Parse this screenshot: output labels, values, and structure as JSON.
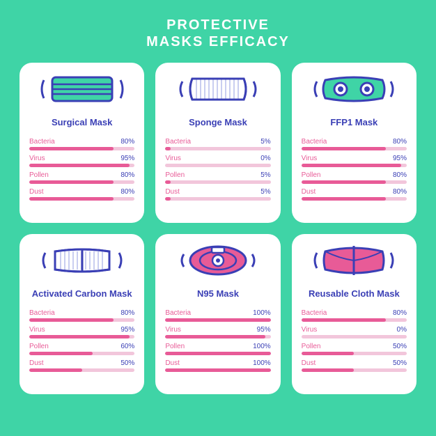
{
  "title_line1": "PROTECTIVE",
  "title_line2": "MASKS EFFICACY",
  "colors": {
    "background": "#3fd4a6",
    "card_bg": "#ffffff",
    "title_text": "#ffffff",
    "name_text": "#3a3fb5",
    "metric_label": "#e85b97",
    "metric_value": "#3a3fb5",
    "bar_track": "#f2c6db",
    "bar_fill": "#e85b97",
    "outline": "#3a3fb5",
    "mask_fill_teal": "#3fd4a6",
    "mask_fill_pink": "#e85b97",
    "mask_fill_white": "#ffffff",
    "mask_hatch": "#c9cef0"
  },
  "title_fontsize": 20,
  "name_fontsize": 13,
  "metric_fontsize": 10,
  "cards": [
    {
      "name": "Surgical Mask",
      "icon": "surgical",
      "metrics": [
        {
          "label": "Bacteria",
          "value": 80
        },
        {
          "label": "Virus",
          "value": 95
        },
        {
          "label": "Pollen",
          "value": 80
        },
        {
          "label": "Dust",
          "value": 80
        }
      ]
    },
    {
      "name": "Sponge Mask",
      "icon": "sponge",
      "metrics": [
        {
          "label": "Bacteria",
          "value": 5
        },
        {
          "label": "Virus",
          "value": 0
        },
        {
          "label": "Pollen",
          "value": 5
        },
        {
          "label": "Dust",
          "value": 5
        }
      ]
    },
    {
      "name": "FFP1 Mask",
      "icon": "ffp1",
      "metrics": [
        {
          "label": "Bacteria",
          "value": 80
        },
        {
          "label": "Virus",
          "value": 95
        },
        {
          "label": "Pollen",
          "value": 80
        },
        {
          "label": "Dust",
          "value": 80
        }
      ]
    },
    {
      "name": "Activated Carbon Mask",
      "icon": "carbon",
      "metrics": [
        {
          "label": "Bacteria",
          "value": 80
        },
        {
          "label": "Virus",
          "value": 95
        },
        {
          "label": "Pollen",
          "value": 60
        },
        {
          "label": "Dust",
          "value": 50
        }
      ]
    },
    {
      "name": "N95 Mask",
      "icon": "n95",
      "metrics": [
        {
          "label": "Bacteria",
          "value": 100
        },
        {
          "label": "Virus",
          "value": 95
        },
        {
          "label": "Pollen",
          "value": 100
        },
        {
          "label": "Dust",
          "value": 100
        }
      ]
    },
    {
      "name": "Reusable Cloth Mask",
      "icon": "cloth",
      "metrics": [
        {
          "label": "Bacteria",
          "value": 80
        },
        {
          "label": "Virus",
          "value": 0
        },
        {
          "label": "Pollen",
          "value": 50
        },
        {
          "label": "Dust",
          "value": 50
        }
      ]
    }
  ]
}
